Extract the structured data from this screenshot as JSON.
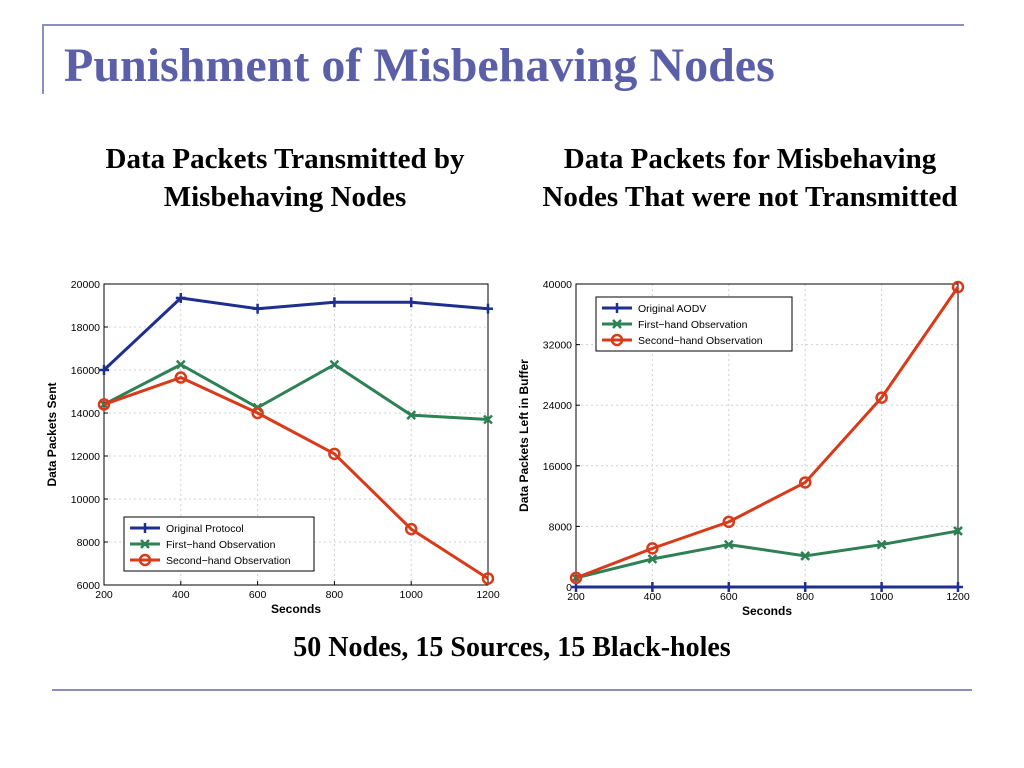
{
  "slide": {
    "title": "Punishment of Misbehaving Nodes",
    "caption_left": "Data Packets Transmitted by Misbehaving Nodes",
    "caption_right": "Data Packets for Misbehaving Nodes That were not Transmitted",
    "bottom_note": "50 Nodes, 15 Sources, 15 Black-holes"
  },
  "chart_data": [
    {
      "type": "line",
      "xlabel": "Seconds",
      "ylabel": "Data Packets Sent",
      "x": [
        200,
        400,
        600,
        800,
        1000,
        1200
      ],
      "xlim": [
        200,
        1200
      ],
      "ylim": [
        6000,
        20000
      ],
      "yticks": [
        6000,
        8000,
        10000,
        12000,
        14000,
        16000,
        18000,
        20000
      ],
      "xticks": [
        200,
        400,
        600,
        800,
        1000,
        1200
      ],
      "grid": true,
      "legend_position": "bottom-left",
      "series": [
        {
          "name": "Original Protocol",
          "color": "#1f2f8f",
          "marker": "plus",
          "values": [
            16000,
            19350,
            18850,
            19150,
            19150,
            18850
          ]
        },
        {
          "name": "First−hand Observation",
          "color": "#2e8055",
          "marker": "x",
          "values": [
            14400,
            16250,
            14250,
            16250,
            13900,
            13700
          ]
        },
        {
          "name": "Second−hand Observation",
          "color": "#d83a1a",
          "marker": "circle",
          "values": [
            14400,
            15650,
            14000,
            12100,
            8600,
            6300
          ]
        }
      ]
    },
    {
      "type": "line",
      "xlabel": "Seconds",
      "ylabel": "Data Packets Left in Buffer",
      "x": [
        200,
        400,
        600,
        800,
        1000,
        1200
      ],
      "xlim": [
        200,
        1200
      ],
      "ylim": [
        0,
        40000
      ],
      "yticks": [
        0,
        8000,
        16000,
        24000,
        32000,
        40000
      ],
      "xticks": [
        200,
        400,
        600,
        800,
        1000,
        1200
      ],
      "grid": true,
      "legend_position": "top-left",
      "series": [
        {
          "name": "Original AODV",
          "color": "#1f2f8f",
          "marker": "plus",
          "values": [
            0,
            0,
            0,
            0,
            0,
            0
          ]
        },
        {
          "name": "First−hand Observation",
          "color": "#2e8055",
          "marker": "x",
          "values": [
            1200,
            3700,
            5600,
            4100,
            5600,
            7400
          ]
        },
        {
          "name": "Second−hand Observation",
          "color": "#d83a1a",
          "marker": "circle",
          "values": [
            1200,
            5100,
            8600,
            13800,
            25000,
            39600
          ]
        }
      ]
    }
  ]
}
